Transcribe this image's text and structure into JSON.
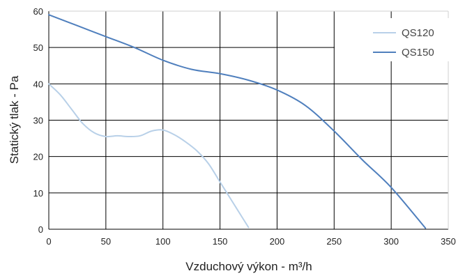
{
  "chart_data": {
    "type": "line",
    "title": "",
    "xlabel": "Vzduchový výkon - m³/h",
    "ylabel": "Statický tlak - Pa",
    "xlim": [
      0,
      350
    ],
    "ylim": [
      0,
      60
    ],
    "x_ticks": [
      "0",
      "50",
      "100",
      "150",
      "200",
      "250",
      "300",
      "350"
    ],
    "y_ticks": [
      "0",
      "10",
      "20",
      "30",
      "40",
      "50",
      "60"
    ],
    "grid": true,
    "legend_position": "top-right",
    "series": [
      {
        "name": "QS120",
        "color": "#b8d0e8",
        "x": [
          0,
          10,
          20,
          30,
          40,
          50,
          60,
          70,
          80,
          90,
          100,
          110,
          120,
          130,
          140,
          150,
          160,
          170,
          175
        ],
        "y": [
          40,
          37,
          33,
          29,
          26.5,
          25.5,
          25.7,
          25.5,
          25.7,
          27,
          27.3,
          26,
          24,
          21.5,
          18,
          13,
          8,
          3,
          0.5
        ]
      },
      {
        "name": "QS150",
        "color": "#4f7fbd",
        "x": [
          0,
          25,
          50,
          75,
          100,
          125,
          150,
          175,
          200,
          225,
          250,
          275,
          300,
          330
        ],
        "y": [
          59,
          56,
          53,
          50,
          46.5,
          44,
          42.8,
          41,
          38.3,
          34,
          27,
          19,
          11.5,
          0.3
        ]
      }
    ]
  }
}
